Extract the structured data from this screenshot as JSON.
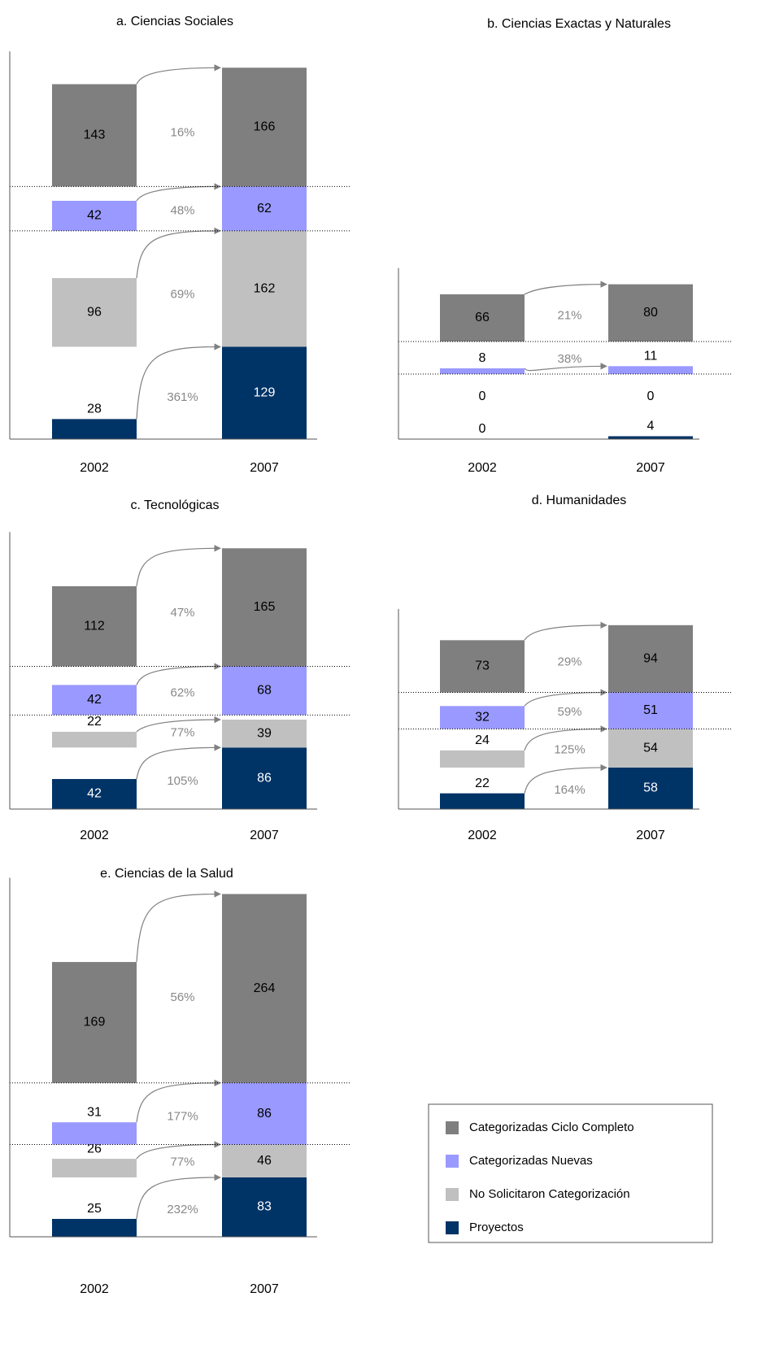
{
  "chart_data": [
    {
      "type": "bar",
      "title": "a. Ciencias Sociales",
      "categories": [
        "2002",
        "2007"
      ],
      "series": [
        {
          "values": [
            143,
            166
          ]
        },
        {
          "values": [
            42,
            62
          ]
        },
        {
          "values": [
            96,
            162
          ]
        },
        {
          "values": [
            28,
            129
          ]
        }
      ],
      "annotations": [
        "16%",
        "48%",
        "69%",
        "361%"
      ]
    },
    {
      "type": "bar",
      "title": "b. Ciencias Exactas y Naturales",
      "categories": [
        "2002",
        "2007"
      ],
      "series": [
        {
          "values": [
            66,
            80
          ]
        },
        {
          "values": [
            8,
            11
          ]
        },
        {
          "values": [
            0,
            0
          ]
        },
        {
          "values": [
            0,
            4
          ]
        }
      ],
      "annotations": [
        "21%",
        "38%",
        null,
        null
      ]
    },
    {
      "type": "bar",
      "title": "c. Tecnológicas",
      "categories": [
        "2002",
        "2007"
      ],
      "series": [
        {
          "values": [
            112,
            165
          ]
        },
        {
          "values": [
            42,
            68
          ]
        },
        {
          "values": [
            22,
            39
          ]
        },
        {
          "values": [
            42,
            86
          ]
        }
      ],
      "annotations": [
        "47%",
        "62%",
        "77%",
        "105%"
      ]
    },
    {
      "type": "bar",
      "title": "d. Humanidades",
      "categories": [
        "2002",
        "2007"
      ],
      "series": [
        {
          "values": [
            73,
            94
          ]
        },
        {
          "values": [
            32,
            51
          ]
        },
        {
          "values": [
            24,
            54
          ]
        },
        {
          "values": [
            22,
            58
          ]
        }
      ],
      "annotations": [
        "29%",
        "59%",
        "125%",
        "164%"
      ]
    },
    {
      "type": "bar",
      "title": "e. Ciencias de la Salud",
      "categories": [
        "2002",
        "2007"
      ],
      "series": [
        {
          "values": [
            169,
            264
          ]
        },
        {
          "values": [
            31,
            86
          ]
        },
        {
          "values": [
            26,
            46
          ]
        },
        {
          "values": [
            25,
            83
          ]
        }
      ],
      "annotations": [
        "56%",
        "177%",
        "77%",
        "232%"
      ]
    }
  ],
  "legend": {
    "series": [
      {
        "name": "Categorizadas Ciclo Completo",
        "color": "#7f7f7f"
      },
      {
        "name": "Categorizadas Nuevas",
        "color": "#9999ff"
      },
      {
        "name": "No Solicitaron Categorización",
        "color": "#c0c0c0"
      },
      {
        "name": "Proyectos",
        "color": "#003366"
      }
    ]
  }
}
